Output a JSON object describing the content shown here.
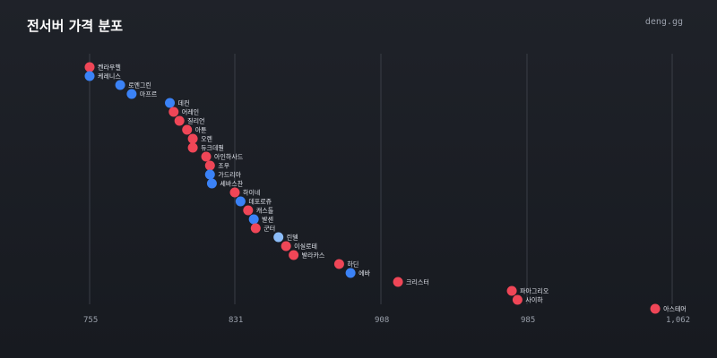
{
  "header": {
    "title": "전서버 가격 분포",
    "site": "deng.gg"
  },
  "colors": {
    "red": "#ef4657",
    "blue": "#3b82f6",
    "lightblue": "#8cbcf8"
  },
  "chart_data": {
    "type": "scatter",
    "xlim": [
      751,
      1062
    ],
    "xticks": [
      {
        "value": 755,
        "label": "755"
      },
      {
        "value": 831,
        "label": "831"
      },
      {
        "value": 908,
        "label": "908"
      },
      {
        "value": 985,
        "label": "985"
      },
      {
        "value": 1062,
        "label": "1,062"
      }
    ],
    "grid": true,
    "points": [
      {
        "label": "켄라우헬",
        "value": 751,
        "color": "red"
      },
      {
        "label": "케레니스",
        "value": 754,
        "color": "blue"
      },
      {
        "label": "로엔그린",
        "value": 771,
        "color": "blue"
      },
      {
        "label": "마프르",
        "value": 777,
        "color": "blue"
      },
      {
        "label": "데컨",
        "value": 797,
        "color": "blue"
      },
      {
        "label": "어레인",
        "value": 799,
        "color": "red"
      },
      {
        "label": "질리언",
        "value": 802,
        "color": "red"
      },
      {
        "label": "아툰",
        "value": 806,
        "color": "red"
      },
      {
        "label": "오렌",
        "value": 809,
        "color": "red"
      },
      {
        "label": "듀크데필",
        "value": 809,
        "color": "red"
      },
      {
        "label": "아인하사드",
        "value": 816,
        "color": "red"
      },
      {
        "label": "조우",
        "value": 818,
        "color": "red"
      },
      {
        "label": "가드리아",
        "value": 818,
        "color": "blue"
      },
      {
        "label": "세바스찬",
        "value": 819,
        "color": "blue"
      },
      {
        "label": "하이네",
        "value": 831,
        "color": "red"
      },
      {
        "label": "데포로쥬",
        "value": 834,
        "color": "blue"
      },
      {
        "label": "캐스톨",
        "value": 838,
        "color": "red"
      },
      {
        "label": "발센",
        "value": 841,
        "color": "blue"
      },
      {
        "label": "군터",
        "value": 842,
        "color": "red"
      },
      {
        "label": "린델",
        "value": 854,
        "color": "lightblue"
      },
      {
        "label": "이실로테",
        "value": 858,
        "color": "red"
      },
      {
        "label": "발라카스",
        "value": 862,
        "color": "red"
      },
      {
        "label": "하딘",
        "value": 886,
        "color": "red"
      },
      {
        "label": "에바",
        "value": 892,
        "color": "blue"
      },
      {
        "label": "크리스터",
        "value": 917,
        "color": "red"
      },
      {
        "label": "파아그리오",
        "value": 977,
        "color": "red"
      },
      {
        "label": "사이하",
        "value": 980,
        "color": "red"
      },
      {
        "label": "아스테어",
        "value": 1053,
        "color": "red"
      }
    ]
  }
}
